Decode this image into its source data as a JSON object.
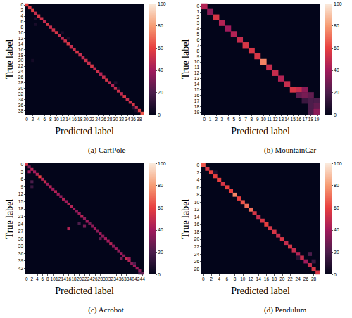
{
  "chart_data": [
    {
      "type": "heatmap",
      "title": "(a) CartPole",
      "x_label": "Predicted label",
      "y_label": "True label",
      "x_categories": [
        0,
        null,
        2,
        null,
        4,
        null,
        6,
        null,
        8,
        null,
        10,
        null,
        12,
        null,
        14,
        null,
        16,
        null,
        18,
        null,
        20,
        null,
        22,
        null,
        24,
        null,
        26,
        null,
        28,
        null,
        30,
        null,
        32,
        null,
        34,
        null,
        36,
        null,
        38,
        null
      ],
      "y_categories": [
        0,
        null,
        2,
        null,
        4,
        null,
        6,
        null,
        8,
        null,
        10,
        null,
        12,
        null,
        14,
        null,
        16,
        null,
        18,
        null,
        20,
        null,
        22,
        null,
        24,
        null,
        26,
        null,
        28,
        null,
        30,
        null,
        32,
        null,
        34,
        null,
        36,
        null,
        38,
        null
      ],
      "cells": [
        [
          0,
          0,
          60
        ],
        [
          1,
          1,
          55
        ],
        [
          2,
          2,
          58
        ],
        [
          3,
          3,
          50
        ],
        [
          4,
          4,
          55
        ],
        [
          5,
          5,
          52
        ],
        [
          6,
          6,
          48
        ],
        [
          7,
          7,
          55
        ],
        [
          8,
          8,
          50
        ],
        [
          9,
          9,
          52
        ],
        [
          10,
          10,
          55
        ],
        [
          11,
          11,
          50
        ],
        [
          12,
          12,
          48
        ],
        [
          13,
          13,
          52
        ],
        [
          14,
          14,
          55
        ],
        [
          15,
          15,
          50
        ],
        [
          16,
          16,
          52
        ],
        [
          17,
          17,
          55
        ],
        [
          18,
          18,
          50
        ],
        [
          19,
          19,
          48
        ],
        [
          20,
          20,
          52
        ],
        [
          21,
          21,
          50
        ],
        [
          22,
          22,
          55
        ],
        [
          23,
          23,
          48
        ],
        [
          24,
          24,
          52
        ],
        [
          25,
          25,
          45
        ],
        [
          26,
          26,
          50
        ],
        [
          27,
          27,
          55
        ],
        [
          28,
          28,
          48
        ],
        [
          29,
          29,
          45
        ],
        [
          30,
          30,
          50
        ],
        [
          31,
          31,
          52
        ],
        [
          32,
          32,
          48
        ],
        [
          33,
          33,
          55
        ],
        [
          34,
          34,
          50
        ],
        [
          35,
          35,
          52
        ],
        [
          36,
          36,
          55
        ],
        [
          37,
          37,
          50
        ],
        [
          38,
          38,
          58
        ],
        [
          39,
          39,
          65
        ],
        [
          3,
          5,
          8
        ],
        [
          3,
          7,
          6
        ],
        [
          2,
          20,
          5
        ],
        [
          12,
          10,
          6
        ],
        [
          14,
          12,
          5
        ],
        [
          30,
          28,
          8
        ],
        [
          31,
          30,
          6
        ],
        [
          36,
          37,
          10
        ],
        [
          37,
          38,
          6
        ]
      ],
      "colorbar_range": [
        0,
        100
      ],
      "colorbar_ticks": [
        0,
        20,
        40,
        60,
        80,
        100
      ]
    },
    {
      "type": "heatmap",
      "title": "(b) MountainCar",
      "x_label": "Predicted label",
      "y_label": "True label",
      "x_categories": [
        0,
        1,
        2,
        3,
        4,
        5,
        6,
        7,
        8,
        9,
        10,
        11,
        12,
        13,
        14,
        15,
        16,
        17,
        18,
        19
      ],
      "y_categories": [
        0,
        1,
        2,
        3,
        4,
        5,
        6,
        7,
        8,
        9,
        10,
        11,
        12,
        13,
        14,
        15,
        16,
        17,
        18,
        19
      ],
      "cells": [
        [
          0,
          0,
          45
        ],
        [
          1,
          1,
          35
        ],
        [
          2,
          2,
          55
        ],
        [
          3,
          3,
          45
        ],
        [
          4,
          4,
          40
        ],
        [
          5,
          5,
          45
        ],
        [
          6,
          6,
          50
        ],
        [
          7,
          7,
          55
        ],
        [
          8,
          8,
          55
        ],
        [
          9,
          9,
          55
        ],
        [
          10,
          10,
          75
        ],
        [
          11,
          11,
          50
        ],
        [
          12,
          12,
          50
        ],
        [
          13,
          13,
          45
        ],
        [
          14,
          14,
          50
        ],
        [
          15,
          15,
          55
        ],
        [
          16,
          15,
          50
        ],
        [
          17,
          15,
          35
        ],
        [
          16,
          16,
          25
        ],
        [
          17,
          16,
          30
        ],
        [
          18,
          16,
          25
        ],
        [
          17,
          17,
          15
        ],
        [
          18,
          17,
          20
        ],
        [
          19,
          17,
          20
        ],
        [
          18,
          18,
          20
        ],
        [
          19,
          18,
          25
        ],
        [
          18,
          19,
          20
        ],
        [
          19,
          19,
          35
        ]
      ],
      "colorbar_range": [
        0,
        100
      ],
      "colorbar_ticks": [
        0,
        20,
        40,
        60,
        80,
        100
      ]
    },
    {
      "type": "heatmap",
      "title": "(c) Acrobot",
      "x_label": "Predicted label",
      "y_label": "True label",
      "x_categories": [
        0,
        null,
        2,
        null,
        4,
        null,
        6,
        null,
        8,
        null,
        10,
        null,
        12,
        null,
        14,
        null,
        16,
        null,
        18,
        null,
        20,
        null,
        22,
        null,
        24,
        null,
        26,
        null,
        28,
        null,
        30,
        null,
        32,
        null,
        34,
        null,
        36,
        null,
        38,
        null,
        40,
        null,
        42,
        null,
        44
      ],
      "y_categories": [
        0,
        null,
        null,
        3,
        null,
        null,
        6,
        null,
        null,
        9,
        null,
        null,
        12,
        null,
        null,
        15,
        null,
        null,
        18,
        null,
        null,
        21,
        null,
        null,
        24,
        null,
        null,
        27,
        null,
        null,
        30,
        null,
        null,
        33,
        null,
        null,
        36,
        null,
        null,
        39,
        null,
        null,
        42,
        null,
        null
      ],
      "cells": [
        [
          0,
          0,
          55
        ],
        [
          1,
          1,
          30
        ],
        [
          2,
          2,
          45
        ],
        [
          3,
          3,
          40
        ],
        [
          4,
          4,
          45
        ],
        [
          5,
          5,
          60
        ],
        [
          6,
          6,
          45
        ],
        [
          7,
          7,
          50
        ],
        [
          8,
          8,
          40
        ],
        [
          9,
          9,
          45
        ],
        [
          10,
          10,
          40
        ],
        [
          11,
          11,
          45
        ],
        [
          12,
          12,
          40
        ],
        [
          13,
          13,
          35
        ],
        [
          14,
          14,
          45
        ],
        [
          15,
          15,
          40
        ],
        [
          16,
          16,
          45
        ],
        [
          17,
          17,
          45
        ],
        [
          18,
          18,
          40
        ],
        [
          19,
          19,
          35
        ],
        [
          20,
          20,
          40
        ],
        [
          21,
          21,
          45
        ],
        [
          22,
          22,
          35
        ],
        [
          23,
          23,
          40
        ],
        [
          24,
          24,
          30
        ],
        [
          25,
          25,
          35
        ],
        [
          26,
          26,
          40
        ],
        [
          27,
          27,
          35
        ],
        [
          28,
          28,
          40
        ],
        [
          29,
          29,
          35
        ],
        [
          30,
          30,
          40
        ],
        [
          31,
          31,
          40
        ],
        [
          32,
          32,
          45
        ],
        [
          33,
          33,
          35
        ],
        [
          34,
          34,
          40
        ],
        [
          35,
          35,
          35
        ],
        [
          36,
          36,
          40
        ],
        [
          37,
          37,
          35
        ],
        [
          38,
          38,
          50
        ],
        [
          39,
          39,
          45
        ],
        [
          40,
          40,
          35
        ],
        [
          41,
          41,
          40
        ],
        [
          42,
          42,
          40
        ],
        [
          43,
          43,
          35
        ],
        [
          44,
          44,
          25
        ],
        [
          1,
          3,
          40
        ],
        [
          2,
          7,
          20
        ],
        [
          2,
          9,
          15
        ],
        [
          16,
          26,
          45
        ],
        [
          20,
          24,
          20
        ],
        [
          22,
          25,
          30
        ],
        [
          28,
          30,
          25
        ],
        [
          36,
          38,
          30
        ],
        [
          39,
          38,
          40
        ],
        [
          41,
          40,
          20
        ],
        [
          43,
          44,
          20
        ]
      ],
      "colorbar_range": [
        0,
        100
      ],
      "colorbar_ticks": [
        0,
        20,
        40,
        60,
        80,
        100
      ]
    },
    {
      "type": "heatmap",
      "title": "(d) Pendulum",
      "x_label": "Predicted label",
      "y_label": "True label",
      "x_categories": [
        0,
        null,
        2,
        null,
        4,
        null,
        6,
        null,
        8,
        null,
        10,
        null,
        12,
        null,
        14,
        null,
        16,
        null,
        18,
        null,
        20,
        null,
        22,
        null,
        24,
        null,
        26,
        null,
        28,
        null
      ],
      "y_categories": [
        0,
        null,
        2,
        null,
        4,
        null,
        6,
        null,
        8,
        null,
        10,
        null,
        12,
        null,
        14,
        null,
        16,
        null,
        18,
        null,
        20,
        null,
        22,
        null,
        24,
        null,
        26,
        null,
        28,
        null
      ],
      "cells": [
        [
          0,
          0,
          65
        ],
        [
          1,
          1,
          55
        ],
        [
          2,
          2,
          60
        ],
        [
          3,
          3,
          60
        ],
        [
          4,
          4,
          60
        ],
        [
          5,
          5,
          55
        ],
        [
          6,
          6,
          60
        ],
        [
          7,
          7,
          60
        ],
        [
          8,
          8,
          75
        ],
        [
          9,
          9,
          60
        ],
        [
          10,
          10,
          65
        ],
        [
          11,
          11,
          70
        ],
        [
          12,
          12,
          70
        ],
        [
          13,
          13,
          55
        ],
        [
          14,
          14,
          50
        ],
        [
          15,
          15,
          55
        ],
        [
          16,
          16,
          60
        ],
        [
          17,
          17,
          55
        ],
        [
          18,
          18,
          55
        ],
        [
          19,
          19,
          50
        ],
        [
          20,
          20,
          55
        ],
        [
          21,
          21,
          50
        ],
        [
          22,
          22,
          55
        ],
        [
          23,
          23,
          50
        ],
        [
          24,
          24,
          45
        ],
        [
          25,
          25,
          50
        ],
        [
          26,
          26,
          40
        ],
        [
          27,
          27,
          50
        ],
        [
          28,
          28,
          55
        ],
        [
          29,
          29,
          55
        ],
        [
          3,
          2,
          8
        ],
        [
          27,
          24,
          20
        ],
        [
          24,
          25,
          10
        ],
        [
          28,
          26,
          15
        ]
      ],
      "colorbar_range": [
        0,
        100
      ],
      "colorbar_ticks": [
        0,
        20,
        40,
        60,
        80,
        100
      ]
    }
  ]
}
